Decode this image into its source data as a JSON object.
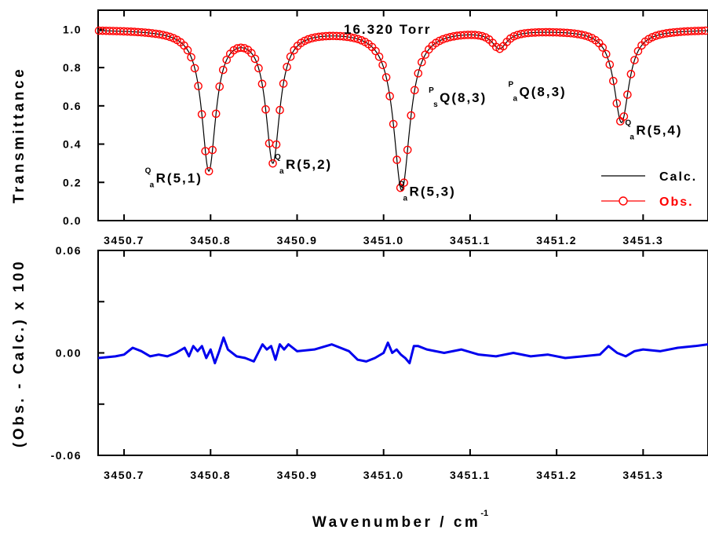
{
  "chart_data": [
    {
      "type": "line",
      "panel": "top",
      "title": "16.320 Torr",
      "ylabel": "Transmittance",
      "xlim": [
        3450.67,
        3451.375
      ],
      "ylim": [
        0.0,
        1.1
      ],
      "yticks": [
        0.0,
        0.2,
        0.4,
        0.6,
        0.8,
        1.0
      ],
      "ytick_labels": [
        "0.0",
        "0.2",
        "0.4",
        "0.6",
        "0.8",
        "1.0"
      ],
      "xticks": [
        3450.7,
        3450.8,
        3450.9,
        3451.0,
        3451.1,
        3451.2,
        3451.3
      ],
      "xtick_labels": [
        "3450.7",
        "3450.8",
        "3450.9",
        "3451.0",
        "3451.1",
        "3451.2",
        "3451.3"
      ],
      "legend": {
        "position": "bottom-right",
        "entries": [
          {
            "label": "Calc.",
            "color": "#000000",
            "style": "line"
          },
          {
            "label": "Obs.",
            "color": "#ff0000",
            "style": "line-circle"
          }
        ]
      },
      "lines": [
        {
          "center": 3450.798,
          "depth": 0.735,
          "width": 0.0098
        },
        {
          "center": 3450.872,
          "depth": 0.69,
          "width": 0.0098
        },
        {
          "center": 3451.021,
          "depth": 0.845,
          "width": 0.0115
        },
        {
          "center": 3451.134,
          "depth": 0.09,
          "width": 0.0105
        },
        {
          "center": 3451.275,
          "depth": 0.49,
          "width": 0.0105
        }
      ],
      "baseline": 1.0,
      "obs_step": 0.0041,
      "annotations": [
        {
          "pre": "Q",
          "sub": "a",
          "main": "R(5,1)",
          "x": 3450.735,
          "y": 0.2
        },
        {
          "pre": "Q",
          "sub": "a",
          "main": "R(5,2)",
          "x": 3450.885,
          "y": 0.27
        },
        {
          "pre": "Q",
          "sub": "a",
          "main": "R(5,3)",
          "x": 3451.028,
          "y": 0.13
        },
        {
          "pre": "P",
          "sub": "s",
          "main": "Q(8,3)",
          "x": 3451.063,
          "y": 0.62
        },
        {
          "pre": "P",
          "sub": "a",
          "main": "Q(8,3)",
          "x": 3451.155,
          "y": 0.65
        },
        {
          "pre": "Q",
          "sub": "a",
          "main": "R(5,4)",
          "x": 3451.29,
          "y": 0.45
        }
      ]
    },
    {
      "type": "line",
      "panel": "bottom",
      "ylabel": "(Obs. - Calc.) x 100",
      "xlabel": "Wavenumber / cm",
      "xlabel_sup": "-1",
      "xlim": [
        3450.67,
        3451.375
      ],
      "ylim": [
        -0.06,
        0.06
      ],
      "yticks": [
        -0.06,
        0.0,
        0.06
      ],
      "ytick_labels": [
        "-0.06",
        "0.00",
        "0.06"
      ],
      "xticks": [
        3450.7,
        3450.8,
        3450.9,
        3451.0,
        3451.1,
        3451.2,
        3451.3
      ],
      "xtick_labels": [
        "3450.7",
        "3450.8",
        "3450.9",
        "3451.0",
        "3451.1",
        "3451.2",
        "3451.3"
      ],
      "series": [
        {
          "color": "#0000ee",
          "x": [
            3450.67,
            3450.69,
            3450.7,
            3450.71,
            3450.72,
            3450.73,
            3450.74,
            3450.75,
            3450.76,
            3450.77,
            3450.775,
            3450.78,
            3450.785,
            3450.79,
            3450.795,
            3450.8,
            3450.805,
            3450.81,
            3450.815,
            3450.82,
            3450.83,
            3450.84,
            3450.85,
            3450.855,
            3450.86,
            3450.865,
            3450.87,
            3450.875,
            3450.88,
            3450.885,
            3450.89,
            3450.9,
            3450.92,
            3450.94,
            3450.96,
            3450.97,
            3450.98,
            3450.99,
            3451.0,
            3451.005,
            3451.01,
            3451.015,
            3451.02,
            3451.025,
            3451.03,
            3451.035,
            3451.04,
            3451.05,
            3451.07,
            3451.09,
            3451.11,
            3451.13,
            3451.15,
            3451.17,
            3451.19,
            3451.21,
            3451.23,
            3451.25,
            3451.26,
            3451.265,
            3451.27,
            3451.28,
            3451.29,
            3451.3,
            3451.32,
            3451.34,
            3451.36,
            3451.375
          ],
          "y": [
            -0.003,
            -0.002,
            -0.001,
            0.003,
            0.001,
            -0.002,
            -0.001,
            -0.002,
            0.0,
            0.003,
            -0.002,
            0.004,
            0.001,
            0.004,
            -0.003,
            0.002,
            -0.006,
            0.001,
            0.009,
            0.002,
            -0.002,
            -0.003,
            -0.005,
            0.0,
            0.005,
            0.002,
            0.004,
            -0.004,
            0.005,
            0.002,
            0.005,
            0.001,
            0.002,
            0.005,
            0.001,
            -0.004,
            -0.005,
            -0.003,
            0.0,
            0.006,
            0.0,
            0.002,
            -0.001,
            -0.003,
            -0.006,
            0.004,
            0.004,
            0.002,
            0.0,
            0.002,
            -0.001,
            -0.002,
            0.0,
            -0.002,
            -0.001,
            -0.003,
            -0.002,
            -0.001,
            0.004,
            0.002,
            0.0,
            -0.002,
            0.001,
            0.002,
            0.001,
            0.003,
            0.004,
            0.005
          ]
        }
      ]
    }
  ]
}
